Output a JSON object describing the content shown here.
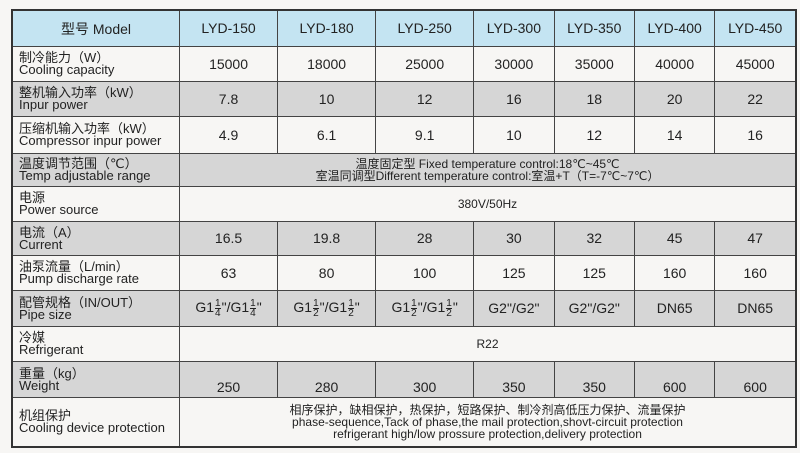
{
  "header": {
    "label": "型号 Model",
    "models": [
      "LYD-150",
      "LYD-180",
      "LYD-250",
      "LYD-300",
      "LYD-350",
      "LYD-400",
      "LYD-450"
    ]
  },
  "rows": [
    {
      "cn": "制冷能力（W）",
      "en": "Cooling capacity",
      "values": [
        "15000",
        "18000",
        "25000",
        "30000",
        "35000",
        "40000",
        "45000"
      ]
    },
    {
      "cn": "整机输入功率（kW）",
      "en": "Inpur power",
      "values": [
        "7.8",
        "10",
        "12",
        "16",
        "18",
        "20",
        "22"
      ]
    },
    {
      "cn": "压缩机输入功率（kW）",
      "en": "Compressor inpur power",
      "values": [
        "4.9",
        "6.1",
        "9.1",
        "10",
        "12",
        "14",
        "16"
      ]
    },
    {
      "cn": "温度调节范围（℃）",
      "en": "Temp adjustable range",
      "span": [
        "温度固定型 Fixed temperature control:18℃~45℃",
        "室温同调型Different temperature control:室温+T（T=-7℃~7℃）"
      ]
    },
    {
      "cn": "电源",
      "en": "Power source",
      "span": [
        "380V/50Hz"
      ]
    },
    {
      "cn": "电流（A）",
      "en": "Current",
      "values": [
        "16.5",
        "19.8",
        "28",
        "30",
        "32",
        "45",
        "47"
      ]
    },
    {
      "cn": "油泵流量（L/min）",
      "en": "Pump discharge rate",
      "values": [
        "63",
        "80",
        "100",
        "125",
        "125",
        "160",
        "160"
      ]
    },
    {
      "cn": "配管规格（IN/OUT）",
      "en": "Pipe size",
      "pipe": [
        {
          "a": "G1",
          "an": "1",
          "ad": "4",
          "b": "/G1",
          "bn": "1",
          "bd": "4"
        },
        {
          "a": "G1",
          "an": "1",
          "ad": "2",
          "b": "/G1",
          "bn": "1",
          "bd": "2"
        },
        {
          "a": "G1",
          "an": "1",
          "ad": "2",
          "b": "/G1",
          "bn": "1",
          "bd": "2"
        }
      ],
      "values": [
        "",
        "",
        "",
        "G2\"/G2\"",
        "G2\"/G2\"",
        "DN65",
        "DN65"
      ]
    },
    {
      "cn": "冷媒",
      "en": "Refrigerant",
      "span": [
        "R22"
      ]
    },
    {
      "cn": "重量（kg）",
      "en": "Weight",
      "values": [
        "250",
        "280",
        "300",
        "350",
        "350",
        "600",
        "600"
      ]
    },
    {
      "cn": "机组保护",
      "en": "Cooling device protection",
      "span": [
        "相序保护，缺相保护，热保护，短路保护、制冷剂高低压力保护、流量保护",
        "phase-sequence,Tack of phase,the mail protection,shovt-circuit protection",
        "refrigerant high/low prossure protection,delivery protection"
      ]
    }
  ],
  "colors": {
    "header_bg": "#c4e4f2",
    "shaded_row": "#d6d6d6"
  }
}
